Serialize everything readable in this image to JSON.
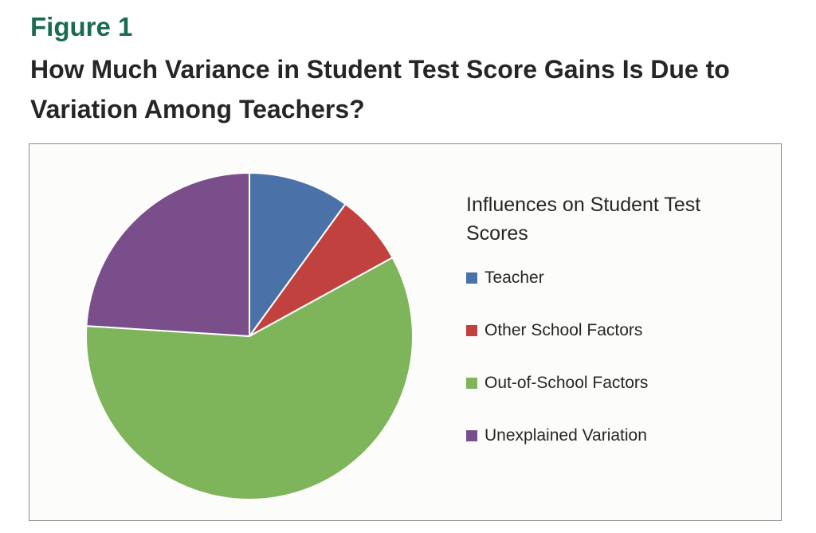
{
  "figure": {
    "label": "Figure 1",
    "title": "How Much Variance in Student Test Score Gains Is Due to Variation Among Teachers?"
  },
  "chart_data": {
    "type": "pie",
    "title": "",
    "legend_title": "Influences on Student Test Scores",
    "legend_position": "right",
    "start": "top, clockwise",
    "categories": [
      "Teacher",
      "Other School Factors",
      "Out-of-School Factors",
      "Unexplained Variation"
    ],
    "values": [
      10,
      7,
      59,
      24
    ],
    "colors": [
      "#4a72a8",
      "#c0413d",
      "#7fb55a",
      "#7a4e8a"
    ]
  }
}
